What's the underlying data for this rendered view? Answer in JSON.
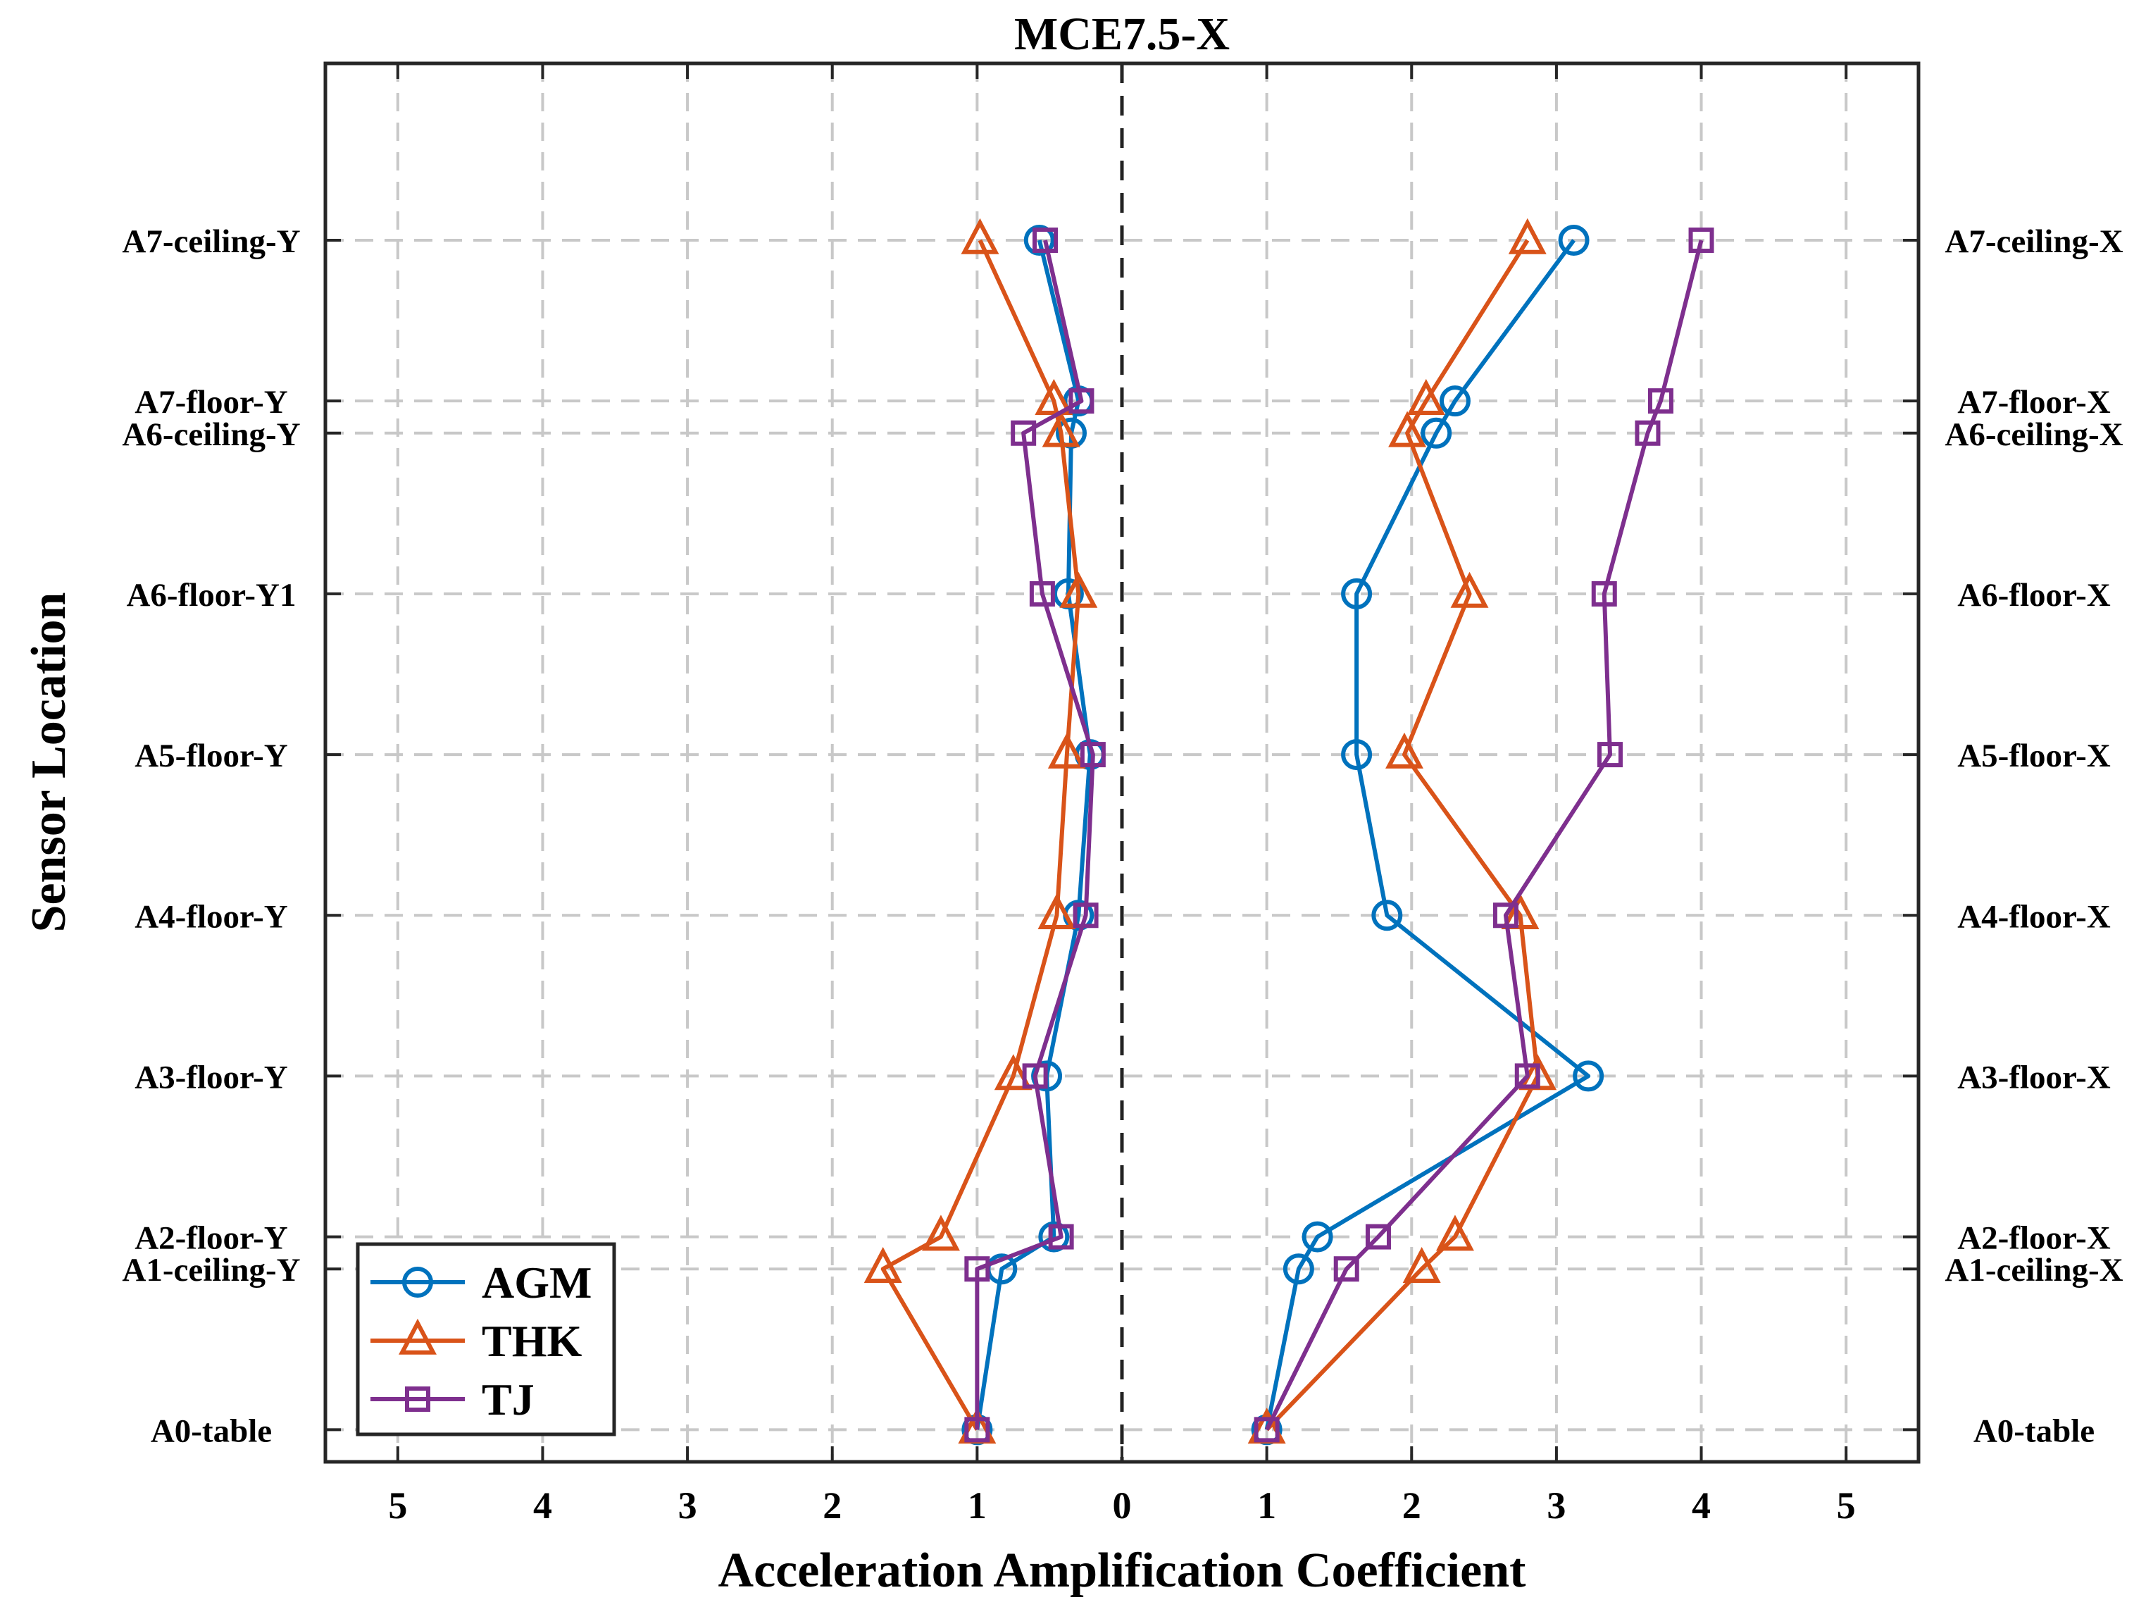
{
  "chart_data": {
    "type": "line",
    "title": "MCE7.5-X",
    "xlabel": "Acceleration Amplification Coefficient",
    "ylabel": "Sensor Location",
    "x_tick_labels": [
      "5",
      "4",
      "3",
      "2",
      "1",
      "0",
      "1",
      "2",
      "3",
      "4",
      "5"
    ],
    "x_tick_values": [
      -5,
      -4,
      -3,
      -2,
      -1,
      0,
      1,
      2,
      3,
      4,
      5
    ],
    "xlim": [
      -5.5,
      5.5
    ],
    "ylim": [
      -0.2,
      8.5
    ],
    "y_left_labels": [
      {
        "y": 0,
        "label": "A0-table"
      },
      {
        "y": 1,
        "label": "A1-ceiling-Y"
      },
      {
        "y": 1.2,
        "label": "A2-floor-Y"
      },
      {
        "y": 2.2,
        "label": "A3-floor-Y"
      },
      {
        "y": 3.2,
        "label": "A4-floor-Y"
      },
      {
        "y": 4.2,
        "label": "A5-floor-Y"
      },
      {
        "y": 5.2,
        "label": "A6-floor-Y1"
      },
      {
        "y": 6.2,
        "label": "A6-ceiling-Y"
      },
      {
        "y": 6.4,
        "label": "A7-floor-Y"
      },
      {
        "y": 7.4,
        "label": "A7-ceiling-Y"
      }
    ],
    "y_right_labels": [
      {
        "y": 0,
        "label": "A0-table"
      },
      {
        "y": 1,
        "label": "A1-ceiling-X"
      },
      {
        "y": 1.2,
        "label": "A2-floor-X"
      },
      {
        "y": 2.2,
        "label": "A3-floor-X"
      },
      {
        "y": 3.2,
        "label": "A4-floor-X"
      },
      {
        "y": 4.2,
        "label": "A5-floor-X"
      },
      {
        "y": 5.2,
        "label": "A6-floor-X"
      },
      {
        "y": 6.2,
        "label": "A6-ceiling-X"
      },
      {
        "y": 6.4,
        "label": "A7-floor-X"
      },
      {
        "y": 7.4,
        "label": "A7-ceiling-X"
      }
    ],
    "legend_position": "bottom-left",
    "series": [
      {
        "name": "AGM",
        "color": "#0072BD",
        "marker": "circle",
        "y_side": [
          [
            -1.0,
            0
          ],
          [
            -0.83,
            1
          ],
          [
            -0.47,
            1.2
          ],
          [
            -0.52,
            2.2
          ],
          [
            -0.3,
            3.2
          ],
          [
            -0.22,
            4.2
          ],
          [
            -0.37,
            5.2
          ],
          [
            -0.35,
            6.2
          ],
          [
            -0.3,
            6.4
          ],
          [
            -0.57,
            7.4
          ]
        ],
        "x_side": [
          [
            1.0,
            0
          ],
          [
            1.22,
            1
          ],
          [
            1.35,
            1.2
          ],
          [
            3.22,
            2.2
          ],
          [
            1.83,
            3.2
          ],
          [
            1.62,
            4.2
          ],
          [
            1.62,
            5.2
          ],
          [
            2.17,
            6.2
          ],
          [
            2.3,
            6.4
          ],
          [
            3.12,
            7.4
          ]
        ]
      },
      {
        "name": "THK",
        "color": "#D95319",
        "marker": "triangle",
        "y_side": [
          [
            -1.0,
            0
          ],
          [
            -1.65,
            1
          ],
          [
            -1.25,
            1.2
          ],
          [
            -0.75,
            2.2
          ],
          [
            -0.45,
            3.2
          ],
          [
            -0.38,
            4.2
          ],
          [
            -0.3,
            5.2
          ],
          [
            -0.42,
            6.2
          ],
          [
            -0.47,
            6.4
          ],
          [
            -0.98,
            7.4
          ]
        ],
        "x_side": [
          [
            1.0,
            0
          ],
          [
            2.07,
            1
          ],
          [
            2.3,
            1.2
          ],
          [
            2.87,
            2.2
          ],
          [
            2.75,
            3.2
          ],
          [
            1.95,
            4.2
          ],
          [
            2.4,
            5.2
          ],
          [
            1.97,
            6.2
          ],
          [
            2.1,
            6.4
          ],
          [
            2.8,
            7.4
          ]
        ]
      },
      {
        "name": "TJ",
        "color": "#7E2F8E",
        "marker": "square",
        "y_side": [
          [
            -1.0,
            0
          ],
          [
            -1.0,
            1
          ],
          [
            -0.42,
            1.2
          ],
          [
            -0.6,
            2.2
          ],
          [
            -0.25,
            3.2
          ],
          [
            -0.2,
            4.2
          ],
          [
            -0.55,
            5.2
          ],
          [
            -0.68,
            6.2
          ],
          [
            -0.28,
            6.4
          ],
          [
            -0.53,
            7.4
          ]
        ],
        "x_side": [
          [
            1.0,
            0
          ],
          [
            1.55,
            1
          ],
          [
            1.77,
            1.2
          ],
          [
            2.8,
            2.2
          ],
          [
            2.65,
            3.2
          ],
          [
            3.37,
            4.2
          ],
          [
            3.33,
            5.2
          ],
          [
            3.63,
            6.2
          ],
          [
            3.72,
            6.4
          ],
          [
            4.0,
            7.4
          ]
        ]
      }
    ]
  }
}
